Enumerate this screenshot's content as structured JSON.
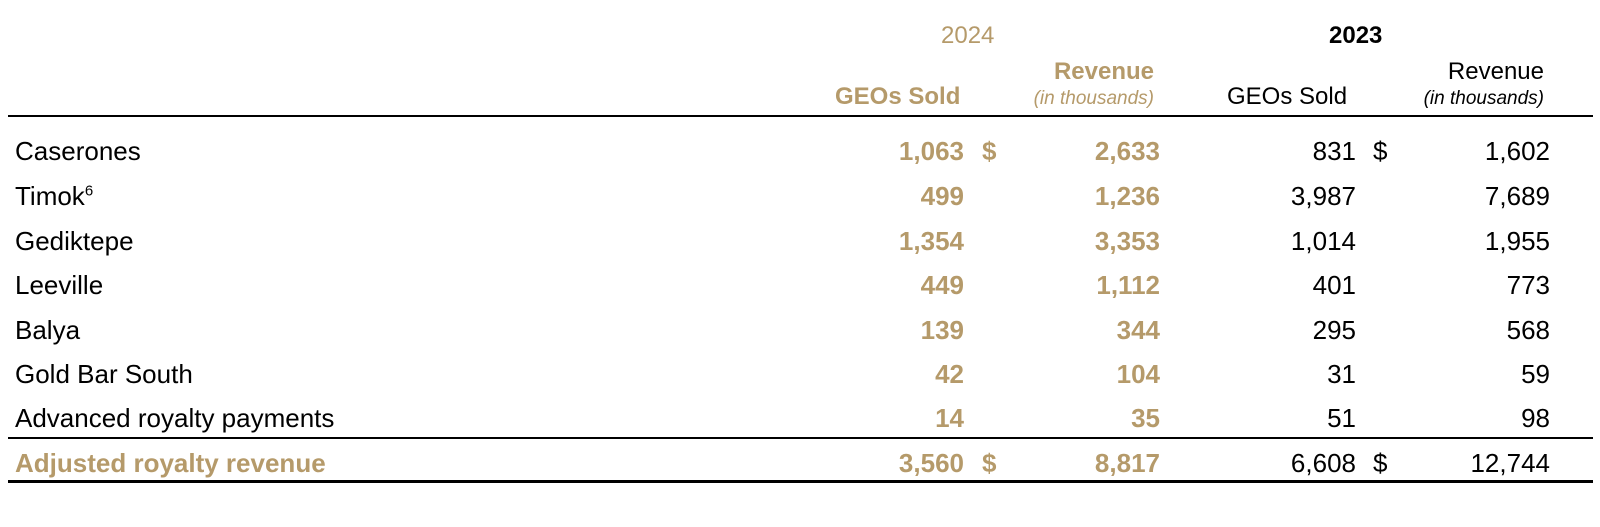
{
  "header": {
    "year_2024": "2024",
    "year_2023": "2023",
    "geos_sold": "GEOs Sold",
    "revenue": "Revenue",
    "in_thousands": "(in thousands)"
  },
  "rows": [
    {
      "label": "Caserones",
      "sup": "",
      "geo_2024": "1,063",
      "dollar_2024": "$",
      "rev_2024": "2,633",
      "geo_2023": "831",
      "dollar_2023": "$",
      "rev_2023": "1,602"
    },
    {
      "label": "Timok",
      "sup": "6",
      "geo_2024": "499",
      "dollar_2024": "",
      "rev_2024": "1,236",
      "geo_2023": "3,987",
      "dollar_2023": "",
      "rev_2023": "7,689"
    },
    {
      "label": "Gediktepe",
      "sup": "",
      "geo_2024": "1,354",
      "dollar_2024": "",
      "rev_2024": "3,353",
      "geo_2023": "1,014",
      "dollar_2023": "",
      "rev_2023": "1,955"
    },
    {
      "label": "Leeville",
      "sup": "",
      "geo_2024": "449",
      "dollar_2024": "",
      "rev_2024": "1,112",
      "geo_2023": "401",
      "dollar_2023": "",
      "rev_2023": "773"
    },
    {
      "label": "Balya",
      "sup": "",
      "geo_2024": "139",
      "dollar_2024": "",
      "rev_2024": "344",
      "geo_2023": "295",
      "dollar_2023": "",
      "rev_2023": "568"
    },
    {
      "label": "Gold Bar South",
      "sup": "",
      "geo_2024": "42",
      "dollar_2024": "",
      "rev_2024": "104",
      "geo_2023": "31",
      "dollar_2023": "",
      "rev_2023": "59"
    },
    {
      "label": "Advanced royalty payments",
      "sup": "",
      "geo_2024": "14",
      "dollar_2024": "",
      "rev_2024": "35",
      "geo_2023": "51",
      "dollar_2023": "",
      "rev_2023": "98"
    }
  ],
  "total": {
    "label": "Adjusted royalty revenue",
    "geo_2024": "3,560",
    "dollar_2024": "$",
    "rev_2024": "8,817",
    "geo_2023": "6,608",
    "dollar_2023": "$",
    "rev_2023": "12,744"
  },
  "colors": {
    "accent_gold": "#b59a6a",
    "text": "#000000"
  }
}
